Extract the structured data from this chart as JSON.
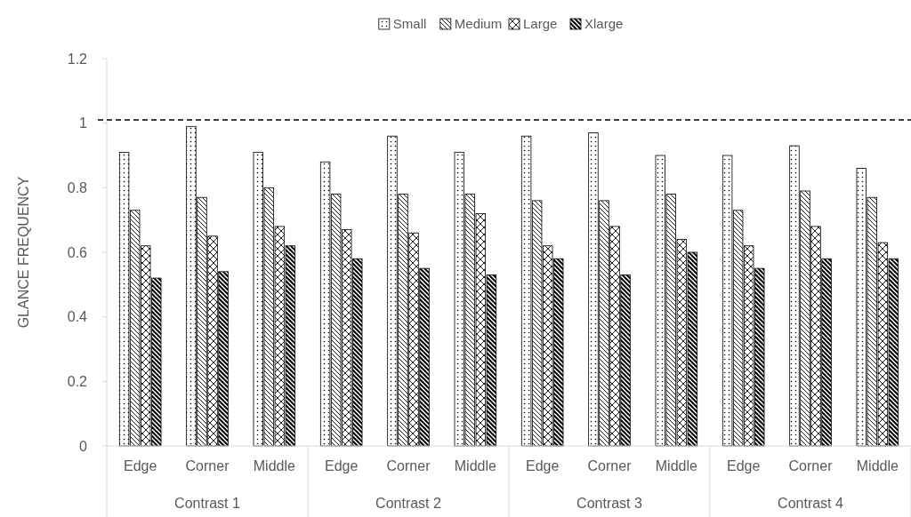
{
  "chart_data": {
    "type": "bar",
    "ylabel": "GLANCE FREQUENCY",
    "categories": [
      "Edge",
      "Corner",
      "Middle",
      "Edge",
      "Corner",
      "Middle",
      "Edge",
      "Corner",
      "Middle",
      "Edge",
      "Corner",
      "Middle"
    ],
    "annotations": [
      "Contrast 1",
      "Contrast 2",
      "Contrast 3",
      "Contrast 4"
    ],
    "series": [
      {
        "name": "Small",
        "color": "#000000",
        "values": [
          0.91,
          0.99,
          0.91,
          0.88,
          0.96,
          0.91,
          0.96,
          0.97,
          0.9,
          0.9,
          0.93,
          0.86
        ]
      },
      {
        "name": "Medium",
        "color": "#000000",
        "values": [
          0.73,
          0.77,
          0.8,
          0.78,
          0.78,
          0.78,
          0.76,
          0.76,
          0.78,
          0.73,
          0.79,
          0.77
        ]
      },
      {
        "name": "Large",
        "color": "#000000",
        "values": [
          0.62,
          0.65,
          0.68,
          0.67,
          0.66,
          0.72,
          0.62,
          0.68,
          0.64,
          0.62,
          0.68,
          0.63
        ]
      },
      {
        "name": "Xlarge",
        "color": "#000000",
        "values": [
          0.52,
          0.54,
          0.62,
          0.58,
          0.55,
          0.53,
          0.58,
          0.53,
          0.6,
          0.55,
          0.58,
          0.58
        ]
      }
    ],
    "ylim": [
      0,
      1.2
    ],
    "yticks": [
      0,
      0.2,
      0.4,
      0.6,
      0.8,
      1,
      1.2
    ],
    "ref_lines": [
      {
        "axis": "y",
        "value": 1.01,
        "line_style": "dashed",
        "color": "#000000"
      }
    ],
    "grid": false,
    "legend": "top"
  }
}
